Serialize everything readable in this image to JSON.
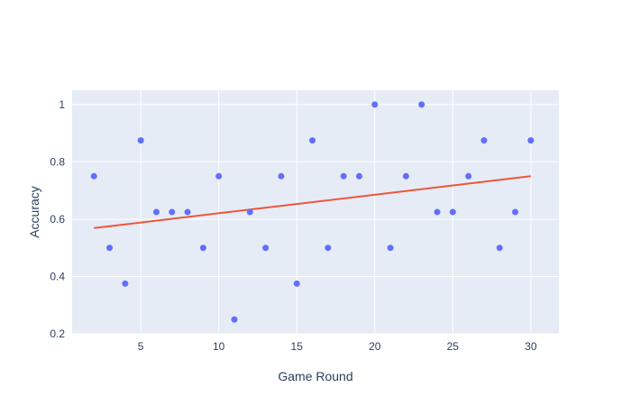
{
  "chart_data": {
    "type": "scatter",
    "xlabel": "Game Round",
    "ylabel": "Accuracy",
    "xlim": [
      0.6,
      31.8
    ],
    "ylim": [
      0.2,
      1.05
    ],
    "xticks": [
      5,
      10,
      15,
      20,
      25,
      30
    ],
    "yticks": [
      0.2,
      0.4,
      0.6,
      0.8,
      1
    ],
    "grid": true,
    "background_color": "#e5ecf6",
    "grid_color": "#ffffff",
    "text_color": "#2a3f5f",
    "series": [
      {
        "mode": "markers",
        "color": "#636efa",
        "x": [
          2,
          3,
          4,
          5,
          6,
          7,
          8,
          9,
          10,
          11,
          12,
          13,
          14,
          15,
          16,
          17,
          18,
          19,
          20,
          21,
          22,
          23,
          24,
          25,
          26,
          27,
          28,
          29,
          30
        ],
        "y": [
          0.75,
          0.5,
          0.375,
          0.875,
          0.625,
          0.625,
          0.625,
          0.5,
          0.75,
          0.25,
          0.625,
          0.5,
          0.75,
          0.375,
          0.875,
          0.5,
          0.75,
          0.75,
          1,
          0.5,
          0.75,
          1,
          0.625,
          0.625,
          0.75,
          0.875,
          0.5,
          0.625,
          0.875
        ]
      },
      {
        "mode": "lines",
        "color": "#ef553b",
        "x": [
          2,
          30
        ],
        "y": [
          0.569,
          0.75
        ]
      }
    ]
  }
}
